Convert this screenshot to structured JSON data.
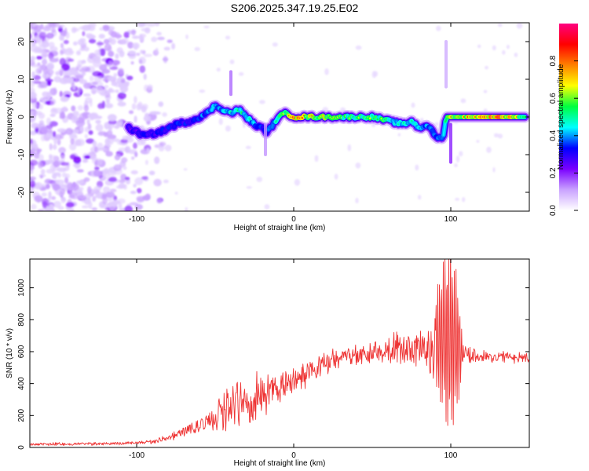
{
  "title": "S206.2025.347.19.25.E02",
  "chart_data": [
    {
      "type": "heatmap",
      "name": "spectrogram",
      "xlabel": "Height of straight line (km)",
      "ylabel": "Frequency (Hz)",
      "xlim": [
        -168,
        150
      ],
      "ylim": [
        -25,
        25
      ],
      "xticks": [
        -100,
        0,
        100
      ],
      "yticks": [
        -20,
        -10,
        0,
        10,
        20
      ],
      "colorbar": {
        "label": "Normalized spectral amplitude",
        "range": [
          0,
          1
        ],
        "ticks": [
          "0.0",
          "0.2",
          "0.4",
          "0.6",
          "0.8"
        ],
        "colors": [
          "#ffffff",
          "#c9a2ff",
          "#7a00ff",
          "#0000ff",
          "#00ffff",
          "#00ff40",
          "#ffff00",
          "#ff8000",
          "#ff0000",
          "#ff0080"
        ]
      },
      "noise_region_x": [
        -168,
        -85
      ],
      "ridge": {
        "x": [
          -105,
          -95,
          -85,
          -75,
          -65,
          -55,
          -50,
          -45,
          -40,
          -35,
          -30,
          -25,
          -20,
          -17,
          -13,
          -10,
          -5,
          0,
          10,
          20,
          30,
          40,
          50,
          60,
          70,
          75,
          80,
          85,
          90,
          95,
          97,
          100,
          110,
          120,
          130,
          140,
          148
        ],
        "y": [
          -3,
          -5,
          -4,
          -2,
          -1,
          1,
          3,
          2,
          1,
          2,
          0,
          -2,
          -3,
          -4,
          -2,
          0,
          1,
          0,
          0,
          0,
          0,
          0,
          0,
          -1,
          -2,
          -1,
          -3,
          -2,
          -5,
          -6,
          0,
          0,
          0,
          0,
          0,
          0,
          0
        ],
        "amp": [
          0.25,
          0.3,
          0.3,
          0.35,
          0.3,
          0.4,
          0.45,
          0.4,
          0.45,
          0.55,
          0.5,
          0.4,
          0.35,
          0.3,
          0.4,
          0.45,
          0.6,
          0.9,
          0.7,
          0.65,
          0.6,
          0.55,
          0.6,
          0.55,
          0.45,
          0.5,
          0.45,
          0.4,
          0.35,
          0.35,
          0.55,
          0.7,
          0.75,
          0.85,
          0.9,
          0.8,
          0.6
        ]
      }
    },
    {
      "type": "line",
      "name": "snr",
      "xlabel": "Height of straight line (km)",
      "ylabel": "SNR (10 * v/v)",
      "xlim": [
        -168,
        150
      ],
      "ylim": [
        0,
        1180
      ],
      "xticks": [
        -100,
        0,
        100
      ],
      "yticks": [
        0,
        200,
        400,
        600,
        800,
        1000
      ],
      "color": "#ee3333",
      "envelope": {
        "x": [
          -168,
          -140,
          -110,
          -90,
          -80,
          -70,
          -60,
          -50,
          -40,
          -30,
          -20,
          -10,
          0,
          10,
          20,
          30,
          40,
          50,
          60,
          70,
          80,
          85,
          90,
          95,
          100,
          105,
          108,
          120,
          135,
          150
        ],
        "y": [
          20,
          22,
          25,
          35,
          60,
          100,
          140,
          180,
          240,
          300,
          340,
          370,
          420,
          470,
          520,
          560,
          590,
          600,
          610,
          620,
          620,
          620,
          650,
          700,
          680,
          640,
          580,
          570,
          565,
          560
        ]
      },
      "oscillation": {
        "x": [
          -168,
          -90,
          -75,
          -60,
          -45,
          -38,
          -30,
          -20,
          -10,
          0,
          20,
          40,
          55,
          60,
          75,
          85,
          90,
          95,
          100,
          104,
          108,
          120,
          150
        ],
        "y": [
          10,
          12,
          30,
          60,
          120,
          200,
          150,
          160,
          120,
          90,
          80,
          70,
          90,
          120,
          110,
          140,
          260,
          460,
          560,
          420,
          60,
          40,
          35
        ]
      }
    }
  ]
}
